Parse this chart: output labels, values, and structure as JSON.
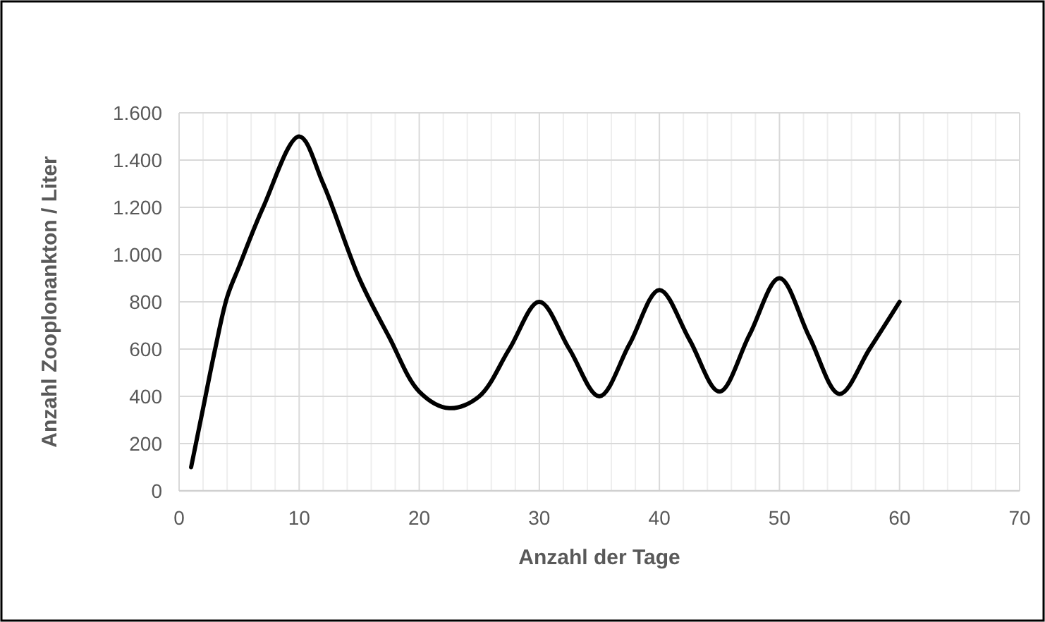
{
  "chart_data": {
    "type": "line",
    "xlabel": "Anzahl der Tage",
    "ylabel": "Anzahl Zooplonankton / Liter",
    "series": [
      {
        "color": "#000000",
        "x": [
          1,
          2,
          3,
          4,
          5,
          7,
          10,
          12,
          15,
          17.5,
          20,
          22.5,
          25,
          27.5,
          30,
          32.5,
          35,
          37.5,
          40,
          42.5,
          45,
          47.5,
          50,
          52.5,
          55,
          57.5,
          60
        ],
        "values": [
          100,
          350,
          600,
          820,
          950,
          1200,
          1500,
          1300,
          900,
          650,
          420,
          350,
          400,
          600,
          800,
          600,
          400,
          620,
          850,
          640,
          420,
          660,
          900,
          650,
          410,
          600,
          800
        ]
      }
    ],
    "xlim": [
      0,
      70
    ],
    "xticks": [
      0,
      {
        "value": 2,
        "label": null
      },
      {
        "value": 4,
        "label": null
      },
      {
        "value": 6,
        "label": null
      },
      {
        "value": 8,
        "label": null
      },
      10,
      {
        "value": 12,
        "label": null
      },
      {
        "value": 14,
        "label": null
      },
      {
        "value": 16,
        "label": null
      },
      {
        "value": 18,
        "label": null
      },
      20,
      {
        "value": 22,
        "label": null
      },
      {
        "value": 24,
        "label": null
      },
      {
        "value": 26,
        "label": null
      },
      {
        "value": 28,
        "label": null
      },
      30,
      {
        "value": 32,
        "label": null
      },
      {
        "value": 34,
        "label": null
      },
      {
        "value": 36,
        "label": null
      },
      {
        "value": 38,
        "label": null
      },
      40,
      {
        "value": 42,
        "label": null
      },
      {
        "value": 44,
        "label": null
      },
      {
        "value": 46,
        "label": null
      },
      {
        "value": 48,
        "label": null
      },
      50,
      {
        "value": 52,
        "label": null
      },
      {
        "value": 54,
        "label": null
      },
      {
        "value": 56,
        "label": null
      },
      {
        "value": 58,
        "label": null
      },
      60,
      {
        "value": 62,
        "label": null
      },
      {
        "value": 64,
        "label": null
      },
      {
        "value": 66,
        "label": null
      },
      {
        "value": 68,
        "label": null
      },
      70
    ],
    "ylim": [
      0,
      1600
    ],
    "yticks": [
      0,
      200,
      400,
      600,
      800,
      {
        "value": 1000,
        "label": "1.000"
      },
      {
        "value": 1200,
        "label": "1.200"
      },
      {
        "value": 1400,
        "label": "1.400"
      },
      {
        "value": 1600,
        "label": "1.600"
      }
    ],
    "grid": true,
    "marker": "none",
    "line_style": "solid"
  }
}
